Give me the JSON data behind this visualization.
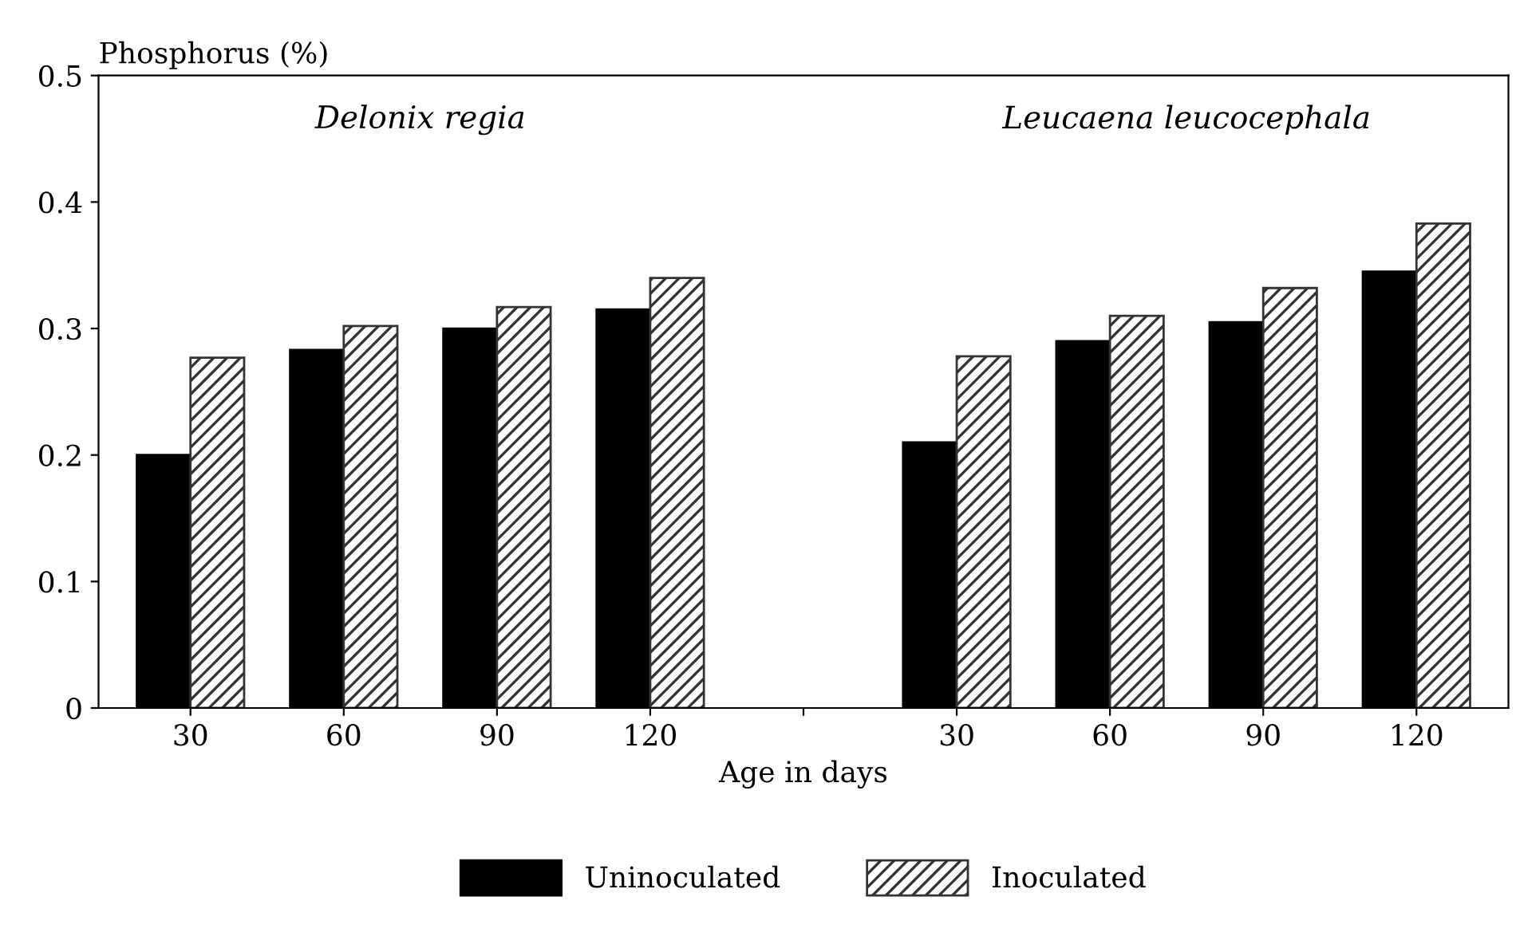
{
  "chart_data": {
    "type": "bar",
    "ylabel": "Phosphorus (%)",
    "xlabel": "Age in days",
    "categories": [
      "30",
      "60",
      "90",
      "120",
      null,
      "30",
      "60",
      "90",
      "120"
    ],
    "series": [
      {
        "name": "Uninoculated",
        "color": "#000000",
        "values": [
          0.2,
          0.283,
          0.3,
          0.315,
          null,
          0.21,
          0.29,
          0.305,
          0.345
        ]
      },
      {
        "name": "Inoculated",
        "color": "#333333",
        "values": [
          0.277,
          0.302,
          0.317,
          0.34,
          null,
          0.278,
          0.31,
          0.332,
          0.383
        ]
      }
    ],
    "annotations": [
      "Delonix regia",
      "Leucaena leucocephala"
    ],
    "ylim": [
      0,
      0.5
    ],
    "yticks": [
      0,
      0.1,
      0.2,
      0.3,
      0.4,
      0.5
    ],
    "grid": false,
    "legend": "bottom"
  }
}
